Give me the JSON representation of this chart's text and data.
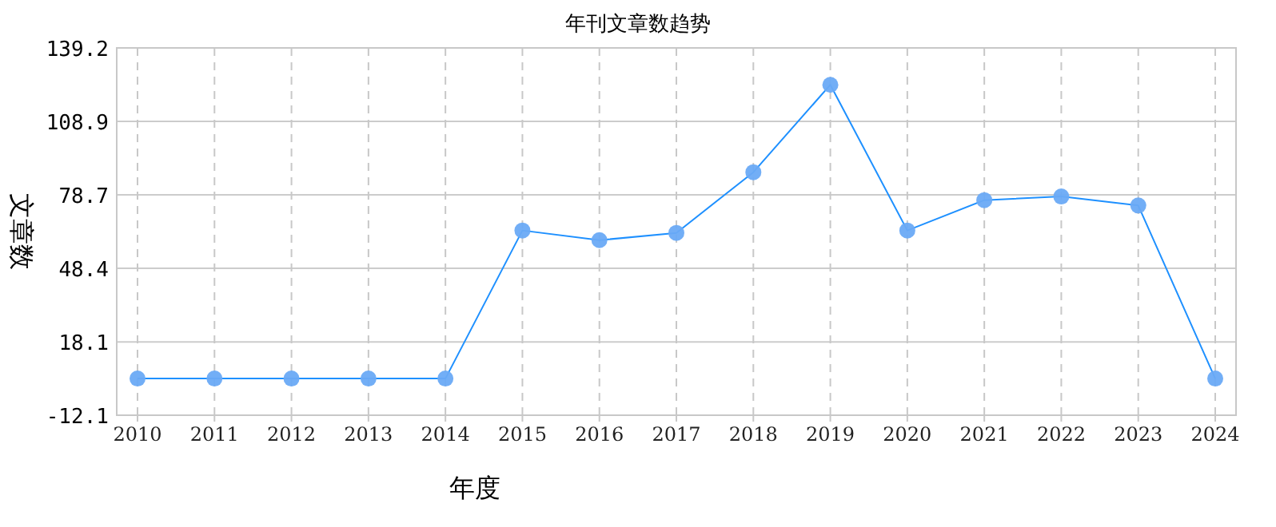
{
  "chart_data": {
    "type": "line",
    "title": "年刊文章数趋势",
    "xlabel": "年度",
    "ylabel": "文章数",
    "categories": [
      "2010",
      "2011",
      "2012",
      "2013",
      "2014",
      "2015",
      "2016",
      "2017",
      "2018",
      "2019",
      "2020",
      "2021",
      "2022",
      "2023",
      "2024"
    ],
    "series": [
      {
        "color": "#1e90ff",
        "values": [
          3,
          3,
          3,
          3,
          3,
          64,
          60,
          63,
          88,
          124,
          64,
          76.5,
          78,
          74.3,
          3
        ]
      }
    ],
    "ylim": [
      -12.1,
      139.2
    ],
    "yticks": [
      -12.1,
      18.1,
      48.4,
      78.7,
      108.9,
      139.2
    ],
    "grid": true,
    "marker": "circle",
    "line_style": "solid"
  }
}
